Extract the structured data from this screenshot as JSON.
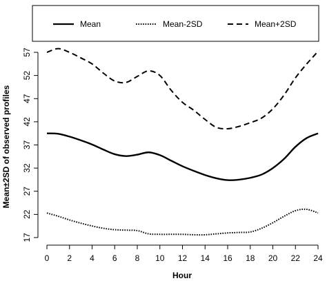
{
  "chart_data": {
    "type": "line",
    "xlabel": "Hour",
    "ylabel": "Mean±2SD of observed profiles",
    "xlim": [
      0,
      24
    ],
    "ylim": [
      17,
      57
    ],
    "x_ticks": [
      0,
      2,
      4,
      6,
      8,
      10,
      12,
      14,
      16,
      18,
      20,
      22,
      24
    ],
    "y_ticks": [
      17,
      22,
      27,
      32,
      37,
      42,
      47,
      52,
      57
    ],
    "grid": false,
    "legend_position": "top, outside plot, horizontal",
    "series": [
      {
        "name": "Mean",
        "style": "solid",
        "x": [
          0,
          1,
          2,
          3,
          4,
          5,
          6,
          7,
          8,
          9,
          10,
          11,
          12,
          13,
          14,
          15,
          16,
          17,
          18,
          19,
          20,
          21,
          22,
          23,
          24
        ],
        "y": [
          39.5,
          39.4,
          38.8,
          38.0,
          37.1,
          36.0,
          35.0,
          34.6,
          34.9,
          35.4,
          34.8,
          33.6,
          32.4,
          31.4,
          30.5,
          29.8,
          29.4,
          29.5,
          29.9,
          30.6,
          32.0,
          34.0,
          36.6,
          38.5,
          39.5
        ]
      },
      {
        "name": "Mean-2SD",
        "style": "dotted",
        "x": [
          0,
          1,
          2,
          3,
          4,
          5,
          6,
          7,
          8,
          9,
          10,
          11,
          12,
          13,
          14,
          15,
          16,
          17,
          18,
          19,
          20,
          21,
          22,
          23,
          24
        ],
        "y": [
          22.3,
          21.6,
          20.8,
          20.1,
          19.5,
          19.0,
          18.7,
          18.6,
          18.5,
          17.8,
          17.7,
          17.7,
          17.7,
          17.6,
          17.6,
          17.8,
          18.0,
          18.1,
          18.2,
          19.0,
          20.2,
          21.6,
          22.8,
          23.1,
          22.3
        ]
      },
      {
        "name": "Mean+2SD",
        "style": "dashed",
        "x": [
          0,
          1,
          2,
          3,
          4,
          5,
          6,
          7,
          8,
          9,
          10,
          11,
          12,
          13,
          14,
          15,
          16,
          17,
          18,
          19,
          20,
          21,
          22,
          23,
          24
        ],
        "y": [
          57.0,
          57.8,
          57.0,
          55.8,
          54.5,
          52.5,
          50.8,
          50.5,
          51.8,
          53.0,
          52.0,
          48.8,
          46.2,
          44.5,
          42.5,
          40.8,
          40.5,
          41.0,
          41.8,
          42.8,
          44.8,
          47.8,
          51.5,
          54.5,
          57.2
        ]
      }
    ]
  },
  "colors": {
    "line": "#000000",
    "background": "#ffffff"
  }
}
